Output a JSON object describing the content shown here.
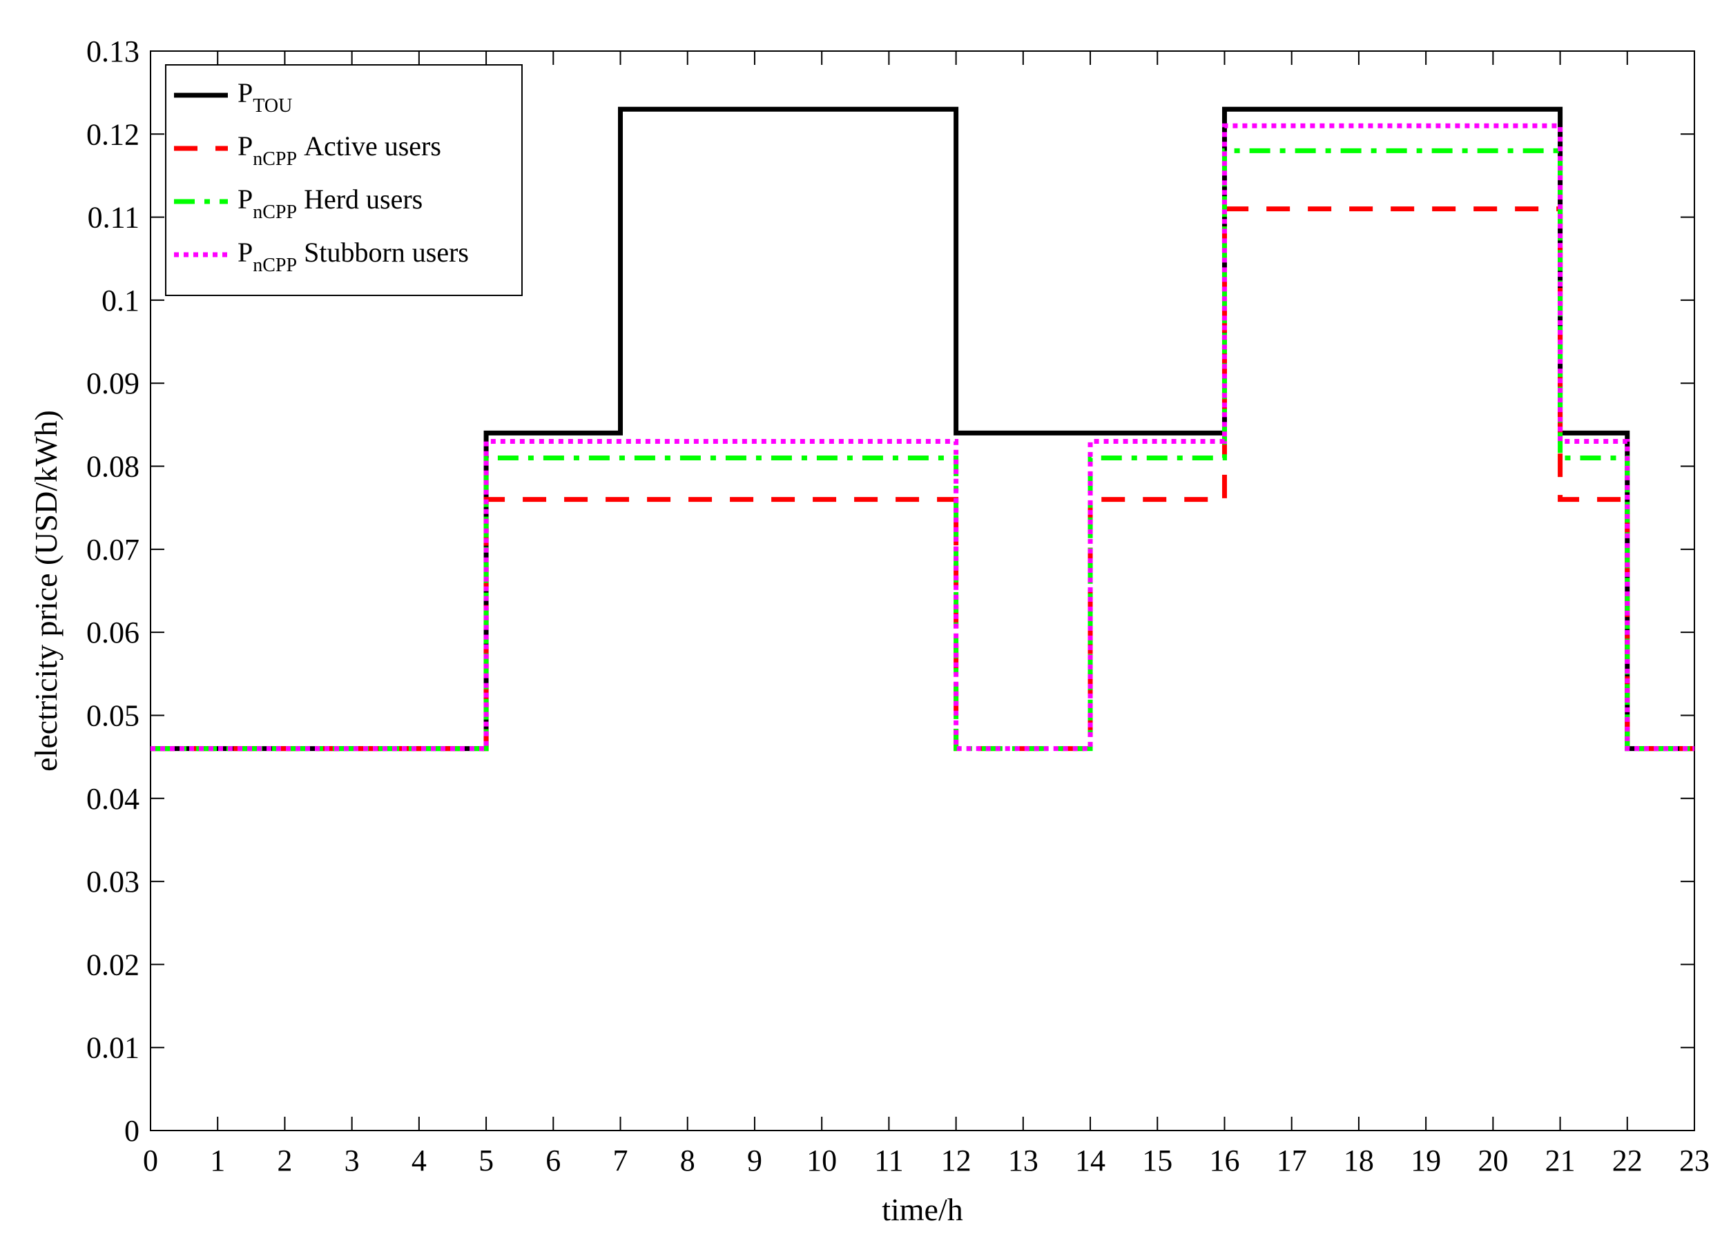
{
  "chart_data": {
    "type": "line",
    "step": true,
    "xlabel": "time/h",
    "ylabel": "electricity price (USD/kWh)",
    "xlim": [
      0,
      23
    ],
    "ylim": [
      0,
      0.13
    ],
    "xticks": [
      0,
      1,
      2,
      3,
      4,
      5,
      6,
      7,
      8,
      9,
      10,
      11,
      12,
      13,
      14,
      15,
      16,
      17,
      18,
      19,
      20,
      21,
      22,
      23
    ],
    "yticks": [
      0,
      0.01,
      0.02,
      0.03,
      0.04,
      0.05,
      0.06,
      0.07,
      0.08,
      0.09,
      0.1,
      0.11,
      0.12,
      0.13
    ],
    "ytick_labels": [
      "0",
      "0.01",
      "0.02",
      "0.03",
      "0.04",
      "0.05",
      "0.06",
      "0.07",
      "0.08",
      "0.09",
      "0.1",
      "0.11",
      "0.12",
      "0.13"
    ],
    "grid": false,
    "legend_position": "top-left",
    "series": [
      {
        "name": "P",
        "name_sub": "TOU",
        "name_suffix": "",
        "color": "#000000",
        "dash": "solid",
        "x": [
          0,
          5,
          7,
          12,
          16,
          21,
          22,
          23
        ],
        "y": [
          0.046,
          0.084,
          0.123,
          0.084,
          0.123,
          0.084,
          0.046,
          0.046
        ]
      },
      {
        "name": "P",
        "name_sub": "nCPP",
        "name_suffix": " Active users",
        "color": "#ff0000",
        "dash": "dashed",
        "x": [
          0,
          5,
          12,
          14,
          16,
          21,
          22,
          23
        ],
        "y": [
          0.046,
          0.076,
          0.046,
          0.076,
          0.111,
          0.076,
          0.046,
          0.046
        ]
      },
      {
        "name": "P",
        "name_sub": "nCPP",
        "name_suffix": " Herd users",
        "color": "#00ff00",
        "dash": "dashdot",
        "x": [
          0,
          5,
          12,
          14,
          16,
          21,
          22,
          23
        ],
        "y": [
          0.046,
          0.081,
          0.046,
          0.081,
          0.118,
          0.081,
          0.046,
          0.046
        ]
      },
      {
        "name": "P",
        "name_sub": "nCPP",
        "name_suffix": " Stubborn users",
        "color": "#ff00ff",
        "dash": "dotted",
        "x": [
          0,
          5,
          12,
          14,
          16,
          21,
          22,
          23
        ],
        "y": [
          0.046,
          0.083,
          0.046,
          0.083,
          0.121,
          0.083,
          0.046,
          0.046
        ]
      }
    ]
  }
}
